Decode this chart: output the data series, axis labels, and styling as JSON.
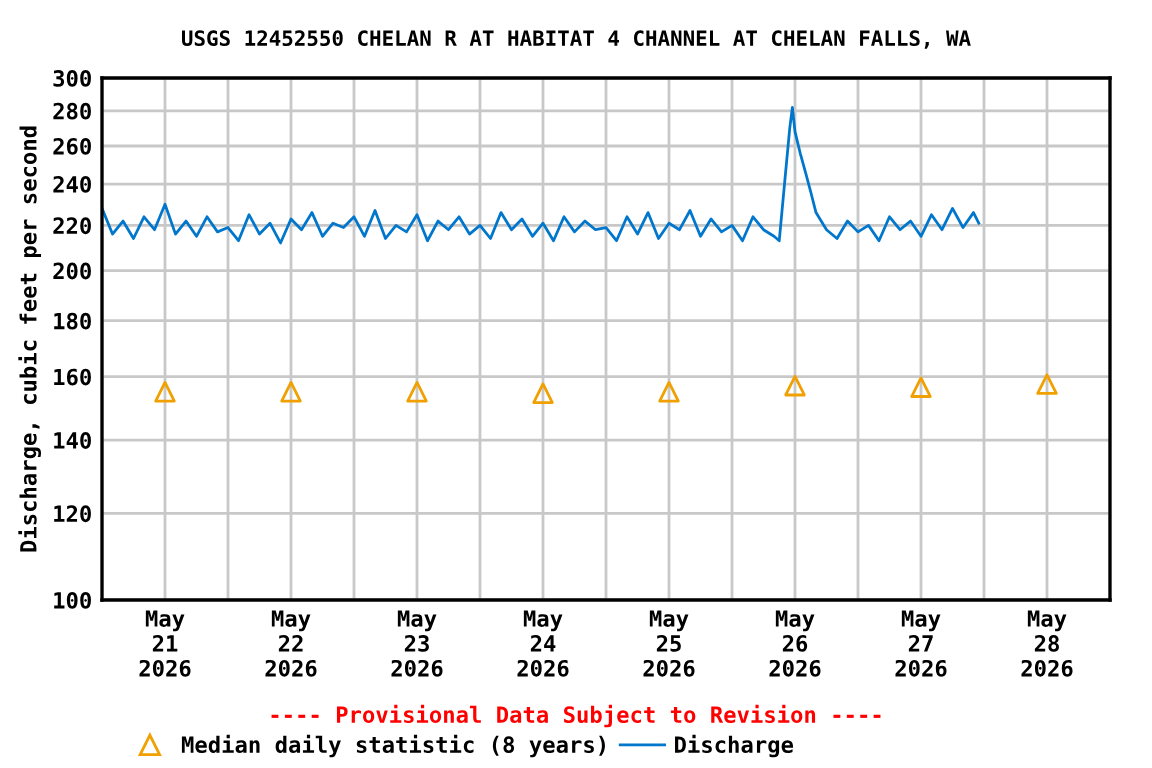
{
  "chart_data": {
    "type": "line",
    "title": "USGS 12452550 CHELAN R AT HABITAT 4 CHANNEL AT CHELAN FALLS, WA",
    "ylabel": "Discharge, cubic feet per second",
    "annotations": [
      "---- Provisional Data Subject to Revision ----"
    ],
    "log": "y",
    "grid": true,
    "legend": "bottom",
    "xlim": [
      "2026-05-21T00:00",
      "2026-05-29T00:00"
    ],
    "xticks": [
      {
        "value": "2026-05-21T00:00",
        "label": null
      },
      {
        "value": "2026-05-21T12:00",
        "label": "May\n21\n2026"
      },
      {
        "value": "2026-05-22T00:00",
        "label": null
      },
      {
        "value": "2026-05-22T12:00",
        "label": "May\n22\n2026"
      },
      {
        "value": "2026-05-23T00:00",
        "label": null
      },
      {
        "value": "2026-05-23T12:00",
        "label": "May\n23\n2026"
      },
      {
        "value": "2026-05-24T00:00",
        "label": null
      },
      {
        "value": "2026-05-24T12:00",
        "label": "May\n24\n2026"
      },
      {
        "value": "2026-05-25T00:00",
        "label": null
      },
      {
        "value": "2026-05-25T12:00",
        "label": "May\n25\n2026"
      },
      {
        "value": "2026-05-26T00:00",
        "label": null
      },
      {
        "value": "2026-05-26T12:00",
        "label": "May\n26\n2026"
      },
      {
        "value": "2026-05-27T00:00",
        "label": null
      },
      {
        "value": "2026-05-27T12:00",
        "label": "May\n27\n2026"
      },
      {
        "value": "2026-05-28T00:00",
        "label": null
      },
      {
        "value": "2026-05-28T12:00",
        "label": "May\n28\n2026"
      },
      {
        "value": "2026-05-29T00:00",
        "label": null
      }
    ],
    "ylim": [
      100,
      300
    ],
    "yticks": [
      100,
      120,
      140,
      160,
      180,
      200,
      220,
      240,
      260,
      280,
      300
    ],
    "series": [
      {
        "name": "Median daily statistic (8 years)",
        "type": "scatter",
        "marker": "triangle",
        "color": "#f0a000",
        "x": [
          "2026-05-21T12:00",
          "2026-05-22T12:00",
          "2026-05-23T12:00",
          "2026-05-24T12:00",
          "2026-05-25T12:00",
          "2026-05-26T12:00",
          "2026-05-27T12:00",
          "2026-05-28T12:00"
        ],
        "values": [
          155,
          155,
          155,
          154.5,
          155,
          157,
          156.5,
          157.5
        ]
      },
      {
        "name": "Discharge",
        "marker": "none",
        "line_style": "solid",
        "color": "#0077cc",
        "x": [
          "2026-05-21T00:00",
          "2026-05-21T02:00",
          "2026-05-21T04:00",
          "2026-05-21T06:00",
          "2026-05-21T08:00",
          "2026-05-21T10:00",
          "2026-05-21T12:00",
          "2026-05-21T14:00",
          "2026-05-21T16:00",
          "2026-05-21T18:00",
          "2026-05-21T20:00",
          "2026-05-21T22:00",
          "2026-05-22T00:00",
          "2026-05-22T02:00",
          "2026-05-22T04:00",
          "2026-05-22T06:00",
          "2026-05-22T08:00",
          "2026-05-22T10:00",
          "2026-05-22T12:00",
          "2026-05-22T14:00",
          "2026-05-22T16:00",
          "2026-05-22T18:00",
          "2026-05-22T20:00",
          "2026-05-22T22:00",
          "2026-05-23T00:00",
          "2026-05-23T02:00",
          "2026-05-23T04:00",
          "2026-05-23T06:00",
          "2026-05-23T08:00",
          "2026-05-23T10:00",
          "2026-05-23T12:00",
          "2026-05-23T14:00",
          "2026-05-23T16:00",
          "2026-05-23T18:00",
          "2026-05-23T20:00",
          "2026-05-23T22:00",
          "2026-05-24T00:00",
          "2026-05-24T02:00",
          "2026-05-24T04:00",
          "2026-05-24T06:00",
          "2026-05-24T08:00",
          "2026-05-24T10:00",
          "2026-05-24T12:00",
          "2026-05-24T14:00",
          "2026-05-24T16:00",
          "2026-05-24T18:00",
          "2026-05-24T20:00",
          "2026-05-24T22:00",
          "2026-05-25T00:00",
          "2026-05-25T02:00",
          "2026-05-25T04:00",
          "2026-05-25T06:00",
          "2026-05-25T08:00",
          "2026-05-25T10:00",
          "2026-05-25T12:00",
          "2026-05-25T14:00",
          "2026-05-25T16:00",
          "2026-05-25T18:00",
          "2026-05-25T20:00",
          "2026-05-25T22:00",
          "2026-05-26T00:00",
          "2026-05-26T02:00",
          "2026-05-26T04:00",
          "2026-05-26T06:00",
          "2026-05-26T08:00",
          "2026-05-26T09:00",
          "2026-05-26T10:00",
          "2026-05-26T11:00",
          "2026-05-26T11:30",
          "2026-05-26T12:00",
          "2026-05-26T13:00",
          "2026-05-26T14:00",
          "2026-05-26T15:00",
          "2026-05-26T16:00",
          "2026-05-26T18:00",
          "2026-05-26T20:00",
          "2026-05-26T22:00",
          "2026-05-27T00:00",
          "2026-05-27T02:00",
          "2026-05-27T04:00",
          "2026-05-27T06:00",
          "2026-05-27T08:00",
          "2026-05-27T10:00",
          "2026-05-27T12:00",
          "2026-05-27T14:00",
          "2026-05-27T16:00",
          "2026-05-27T18:00",
          "2026-05-27T20:00",
          "2026-05-27T22:00",
          "2026-05-27T23:00"
        ],
        "values": [
          228,
          216,
          222,
          214,
          224,
          218,
          230,
          216,
          222,
          215,
          224,
          217,
          219,
          213,
          225,
          216,
          221,
          212,
          223,
          218,
          226,
          215,
          221,
          219,
          224,
          215,
          227,
          214,
          220,
          217,
          225,
          213,
          222,
          218,
          224,
          216,
          220,
          214,
          226,
          218,
          223,
          215,
          221,
          213,
          224,
          217,
          222,
          218,
          219,
          213,
          224,
          216,
          226,
          214,
          221,
          218,
          227,
          215,
          223,
          217,
          220,
          213,
          224,
          218,
          215,
          213,
          240,
          270,
          282,
          268,
          256,
          246,
          236,
          226,
          218,
          214,
          222,
          217,
          220,
          213,
          224,
          218,
          222,
          215,
          225,
          218,
          228,
          219,
          226,
          221
        ]
      }
    ]
  }
}
